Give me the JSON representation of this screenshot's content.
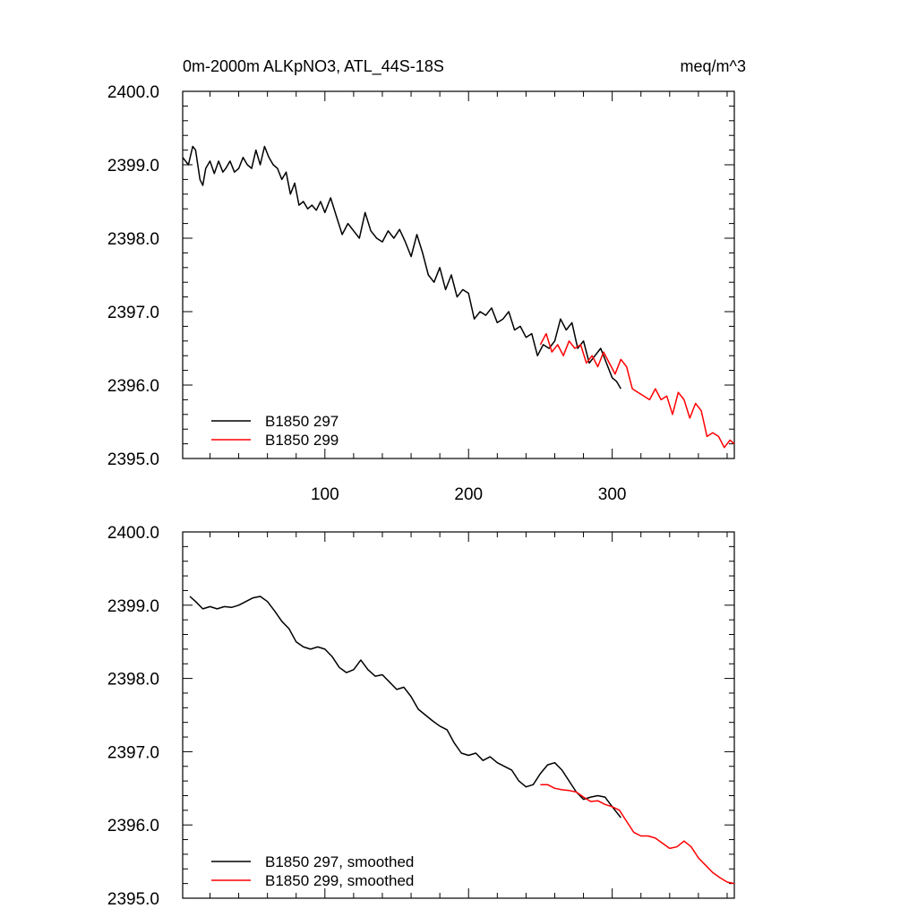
{
  "chart_data": [
    {
      "type": "line",
      "title": "0m-2000m ALKpNO3, ATL_44S-18S",
      "units": "meq/m^3",
      "xlabel": "",
      "ylabel": "",
      "xlim": [
        1,
        385
      ],
      "ylim": [
        2395.0,
        2400.0
      ],
      "yticks": [
        2395.0,
        2396.0,
        2397.0,
        2398.0,
        2399.0,
        2400.0
      ],
      "ytick_labels": [
        "2395.0",
        "2396.0",
        "2397.0",
        "2398.0",
        "2399.0",
        "2400.0"
      ],
      "xticks": [
        100,
        200,
        300
      ],
      "xtick_labels": [
        "100",
        "200",
        "300"
      ],
      "legend_position": "bottom-left",
      "grid": false,
      "series": [
        {
          "name": "B1850 297",
          "color": "#000000",
          "x": [
            1,
            5,
            8,
            10,
            13,
            15,
            17,
            20,
            23,
            26,
            29,
            31,
            34,
            37,
            40,
            43,
            46,
            49,
            52,
            55,
            58,
            61,
            64,
            67,
            70,
            73,
            76,
            79,
            82,
            85,
            88,
            91,
            94,
            97,
            100,
            104,
            108,
            112,
            116,
            120,
            124,
            128,
            132,
            136,
            140,
            144,
            148,
            152,
            156,
            160,
            164,
            168,
            172,
            176,
            180,
            184,
            188,
            192,
            196,
            200,
            204,
            208,
            212,
            216,
            220,
            224,
            228,
            232,
            236,
            240,
            244,
            248,
            252,
            256,
            260,
            264,
            268,
            272,
            276,
            280,
            284,
            288,
            292,
            296,
            300,
            303,
            306
          ],
          "values": [
            2399.1,
            2399.0,
            2399.25,
            2399.2,
            2398.8,
            2398.72,
            2398.95,
            2399.05,
            2398.88,
            2399.05,
            2398.9,
            2398.95,
            2399.05,
            2398.9,
            2398.95,
            2399.1,
            2399.0,
            2398.95,
            2399.2,
            2399.0,
            2399.25,
            2399.1,
            2399.0,
            2398.95,
            2398.8,
            2398.9,
            2398.6,
            2398.75,
            2398.45,
            2398.5,
            2398.4,
            2398.45,
            2398.38,
            2398.5,
            2398.35,
            2398.55,
            2398.3,
            2398.05,
            2398.2,
            2398.1,
            2398.0,
            2398.35,
            2398.1,
            2398.0,
            2397.95,
            2398.1,
            2398.0,
            2398.12,
            2397.95,
            2397.75,
            2398.05,
            2397.8,
            2397.5,
            2397.4,
            2397.6,
            2397.3,
            2397.5,
            2397.2,
            2397.3,
            2397.25,
            2396.9,
            2397.0,
            2396.95,
            2397.05,
            2396.85,
            2396.9,
            2397.0,
            2396.75,
            2396.8,
            2396.65,
            2396.7,
            2396.4,
            2396.55,
            2396.5,
            2396.6,
            2396.9,
            2396.75,
            2396.85,
            2396.5,
            2396.6,
            2396.3,
            2396.4,
            2396.5,
            2396.3,
            2396.1,
            2396.05,
            2395.95
          ]
        },
        {
          "name": "B1850 299",
          "color": "#ff0000",
          "x": [
            250,
            254,
            258,
            262,
            266,
            270,
            274,
            278,
            282,
            286,
            290,
            294,
            298,
            302,
            306,
            310,
            314,
            318,
            322,
            326,
            330,
            334,
            338,
            342,
            346,
            350,
            354,
            358,
            362,
            366,
            370,
            374,
            378,
            382,
            385
          ],
          "values": [
            2396.55,
            2396.7,
            2396.45,
            2396.55,
            2396.4,
            2396.6,
            2396.5,
            2396.55,
            2396.3,
            2396.4,
            2396.25,
            2396.45,
            2396.3,
            2396.15,
            2396.35,
            2396.25,
            2395.95,
            2395.9,
            2395.85,
            2395.8,
            2395.95,
            2395.8,
            2395.85,
            2395.6,
            2395.9,
            2395.8,
            2395.55,
            2395.75,
            2395.65,
            2395.3,
            2395.35,
            2395.3,
            2395.15,
            2395.25,
            2395.2
          ]
        }
      ]
    },
    {
      "type": "line",
      "title": "",
      "units": "",
      "xlabel": "",
      "ylabel": "",
      "xlim": [
        1,
        385
      ],
      "ylim": [
        2395.0,
        2400.0
      ],
      "yticks": [
        2395.0,
        2396.0,
        2397.0,
        2398.0,
        2399.0,
        2400.0
      ],
      "ytick_labels": [
        "2395.0",
        "2396.0",
        "2397.0",
        "2398.0",
        "2399.0",
        "2400.0"
      ],
      "xticks": [
        100,
        200,
        300
      ],
      "xtick_labels": [],
      "legend_position": "bottom-left",
      "grid": false,
      "series": [
        {
          "name": "B1850 297, smoothed",
          "color": "#000000",
          "x": [
            6,
            10,
            15,
            20,
            25,
            30,
            35,
            40,
            45,
            50,
            55,
            60,
            65,
            70,
            75,
            80,
            85,
            90,
            95,
            100,
            105,
            110,
            115,
            120,
            125,
            130,
            135,
            140,
            145,
            150,
            155,
            160,
            165,
            170,
            175,
            180,
            185,
            190,
            195,
            200,
            205,
            210,
            215,
            220,
            225,
            230,
            235,
            240,
            245,
            250,
            255,
            260,
            265,
            270,
            275,
            280,
            285,
            290,
            295,
            300,
            306
          ],
          "values": [
            2399.12,
            2399.05,
            2398.95,
            2398.98,
            2398.95,
            2398.98,
            2398.97,
            2399.0,
            2399.05,
            2399.1,
            2399.12,
            2399.05,
            2398.92,
            2398.78,
            2398.68,
            2398.5,
            2398.43,
            2398.4,
            2398.43,
            2398.4,
            2398.3,
            2398.15,
            2398.08,
            2398.12,
            2398.25,
            2398.12,
            2398.03,
            2398.05,
            2397.95,
            2397.85,
            2397.88,
            2397.75,
            2397.58,
            2397.5,
            2397.42,
            2397.35,
            2397.3,
            2397.12,
            2396.98,
            2396.95,
            2396.98,
            2396.88,
            2396.93,
            2396.85,
            2396.8,
            2396.75,
            2396.6,
            2396.52,
            2396.55,
            2396.7,
            2396.82,
            2396.85,
            2396.75,
            2396.6,
            2396.45,
            2396.35,
            2396.38,
            2396.4,
            2396.38,
            2396.25,
            2396.1
          ]
        },
        {
          "name": "B1850 299, smoothed",
          "color": "#ff0000",
          "x": [
            250,
            255,
            260,
            265,
            270,
            275,
            280,
            285,
            290,
            295,
            300,
            305,
            310,
            315,
            320,
            325,
            330,
            335,
            340,
            345,
            350,
            355,
            360,
            365,
            370,
            375,
            380,
            385
          ],
          "values": [
            2396.55,
            2396.55,
            2396.5,
            2396.48,
            2396.47,
            2396.45,
            2396.38,
            2396.32,
            2396.33,
            2396.28,
            2396.25,
            2396.2,
            2396.05,
            2395.9,
            2395.85,
            2395.85,
            2395.82,
            2395.75,
            2395.68,
            2395.7,
            2395.78,
            2395.7,
            2395.55,
            2395.45,
            2395.35,
            2395.28,
            2395.22,
            2395.2
          ]
        }
      ]
    }
  ]
}
